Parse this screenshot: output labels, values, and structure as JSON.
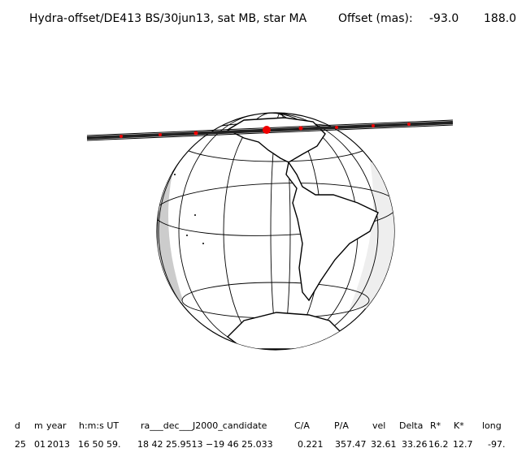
{
  "header": {
    "title": "Hydra-offset/DE413 BS/30jun13, sat MB, star MA",
    "offset_label": "Offset (mas):",
    "offset_values": [
      "-93.0",
      "188.0"
    ]
  },
  "table": {
    "columns": [
      {
        "header": "d",
        "value": "25"
      },
      {
        "header": "m",
        "value": "01"
      },
      {
        "header": "year",
        "value": "2013"
      },
      {
        "header": "h:m:s UT",
        "value": "16 50 59."
      },
      {
        "header": "ra___dec___J2000_candidate",
        "value": "18 42 25.9513 −19 46 25.033"
      },
      {
        "header": "C/A",
        "value": "0.221"
      },
      {
        "header": "P/A",
        "value": "357.47"
      },
      {
        "header": "vel",
        "value": "32.61"
      },
      {
        "header": "Delta",
        "value": "33.26"
      },
      {
        "header": "R*",
        "value": "16.2"
      },
      {
        "header": "K*",
        "value": "12.7"
      },
      {
        "header": "long",
        "value": "-97."
      }
    ]
  }
}
